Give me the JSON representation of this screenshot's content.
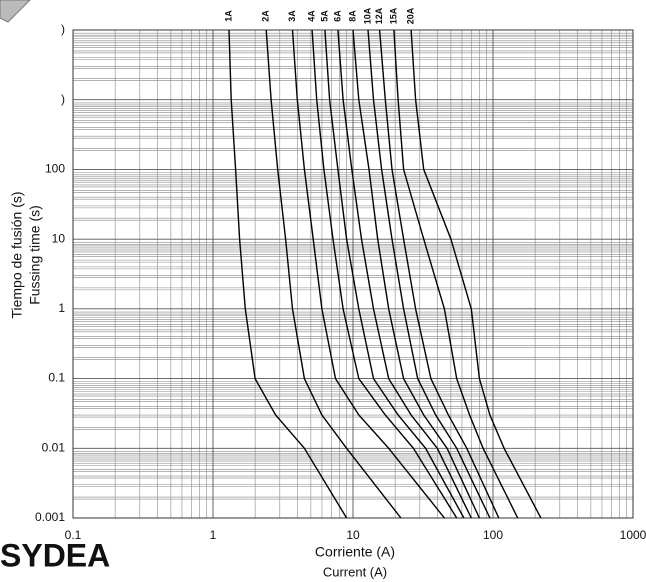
{
  "chart_data": {
    "type": "line",
    "xlabel": [
      "Corriente (A)",
      "Current (A)"
    ],
    "ylabel": [
      "Tiempo de fusión (s)",
      "Fussing time (s)"
    ],
    "logo": "SYDEA",
    "xscale": "log",
    "yscale": "log",
    "grid": true,
    "xlim": [
      0.1,
      1000
    ],
    "ylim": [
      0.001,
      10000
    ],
    "xticks": [
      0.1,
      1,
      10,
      100,
      1000
    ],
    "yticks": [
      0.001,
      0.01,
      0.1,
      1,
      10,
      100,
      {
        "value": 1000,
        "label": ")"
      },
      {
        "value": 10000,
        "label": ")"
      }
    ],
    "series": [
      {
        "name": "1A",
        "color": "#000000",
        "x": [
          1.3,
          1.35,
          1.45,
          1.55,
          1.7,
          2.0,
          2.8,
          4.5,
          9
        ],
        "values": [
          10000,
          1000,
          100,
          10,
          1,
          0.1,
          0.03,
          0.01,
          0.001
        ]
      },
      {
        "name": "2A",
        "color": "#000000",
        "x": [
          2.4,
          2.6,
          2.9,
          3.3,
          3.7,
          4.5,
          6,
          9,
          22
        ],
        "values": [
          10000,
          1000,
          100,
          10,
          1,
          0.1,
          0.03,
          0.01,
          0.001
        ]
      },
      {
        "name": "3A",
        "color": "#000000",
        "x": [
          3.7,
          4,
          4.5,
          5.2,
          6,
          7.5,
          11,
          18,
          45
        ],
        "values": [
          10000,
          1000,
          100,
          10,
          1,
          0.1,
          0.03,
          0.01,
          0.001
        ]
      },
      {
        "name": "4A",
        "color": "#000000",
        "x": [
          5.1,
          5.5,
          6.2,
          7.2,
          8.5,
          11,
          17,
          27,
          55
        ],
        "values": [
          10000,
          1000,
          100,
          10,
          1,
          0.1,
          0.03,
          0.01,
          0.001
        ]
      },
      {
        "name": "5A",
        "color": "#000000",
        "x": [
          6.3,
          6.8,
          7.8,
          9,
          11,
          14,
          21,
          33,
          62
        ],
        "values": [
          10000,
          1000,
          100,
          10,
          1,
          0.1,
          0.03,
          0.01,
          0.001
        ]
      },
      {
        "name": "6A",
        "color": "#000000",
        "x": [
          7.8,
          8.5,
          9.8,
          11.5,
          14,
          18,
          26,
          40,
          70
        ],
        "values": [
          10000,
          1000,
          100,
          10,
          1,
          0.1,
          0.03,
          0.01,
          0.001
        ]
      },
      {
        "name": "8A",
        "color": "#000000",
        "x": [
          10,
          11,
          13,
          15,
          18,
          23,
          32,
          47,
          80
        ],
        "values": [
          10000,
          1000,
          100,
          10,
          1,
          0.1,
          0.03,
          0.01,
          0.001
        ]
      },
      {
        "name": "10A",
        "color": "#000000",
        "x": [
          12.8,
          14,
          16,
          19,
          23,
          29,
          39,
          55,
          95
        ],
        "values": [
          10000,
          1000,
          100,
          10,
          1,
          0.1,
          0.03,
          0.01,
          0.001
        ]
      },
      {
        "name": "12A",
        "color": "#000000",
        "x": [
          15.5,
          17,
          19,
          23,
          28,
          36,
          48,
          65,
          110
        ],
        "values": [
          10000,
          1000,
          100,
          10,
          1,
          0.1,
          0.03,
          0.01,
          0.001
        ]
      },
      {
        "name": "15A",
        "color": "#000000",
        "x": [
          19.6,
          21,
          23,
          32,
          45,
          55,
          68,
          85,
          150
        ],
        "values": [
          10000,
          1000,
          100,
          10,
          1,
          0.1,
          0.03,
          0.01,
          0.001
        ]
      },
      {
        "name": "20A",
        "color": "#000000",
        "x": [
          26,
          28,
          32,
          50,
          70,
          80,
          95,
          120,
          220
        ],
        "values": [
          10000,
          1000,
          100,
          10,
          1,
          0.1,
          0.03,
          0.01,
          0.001
        ]
      }
    ]
  }
}
